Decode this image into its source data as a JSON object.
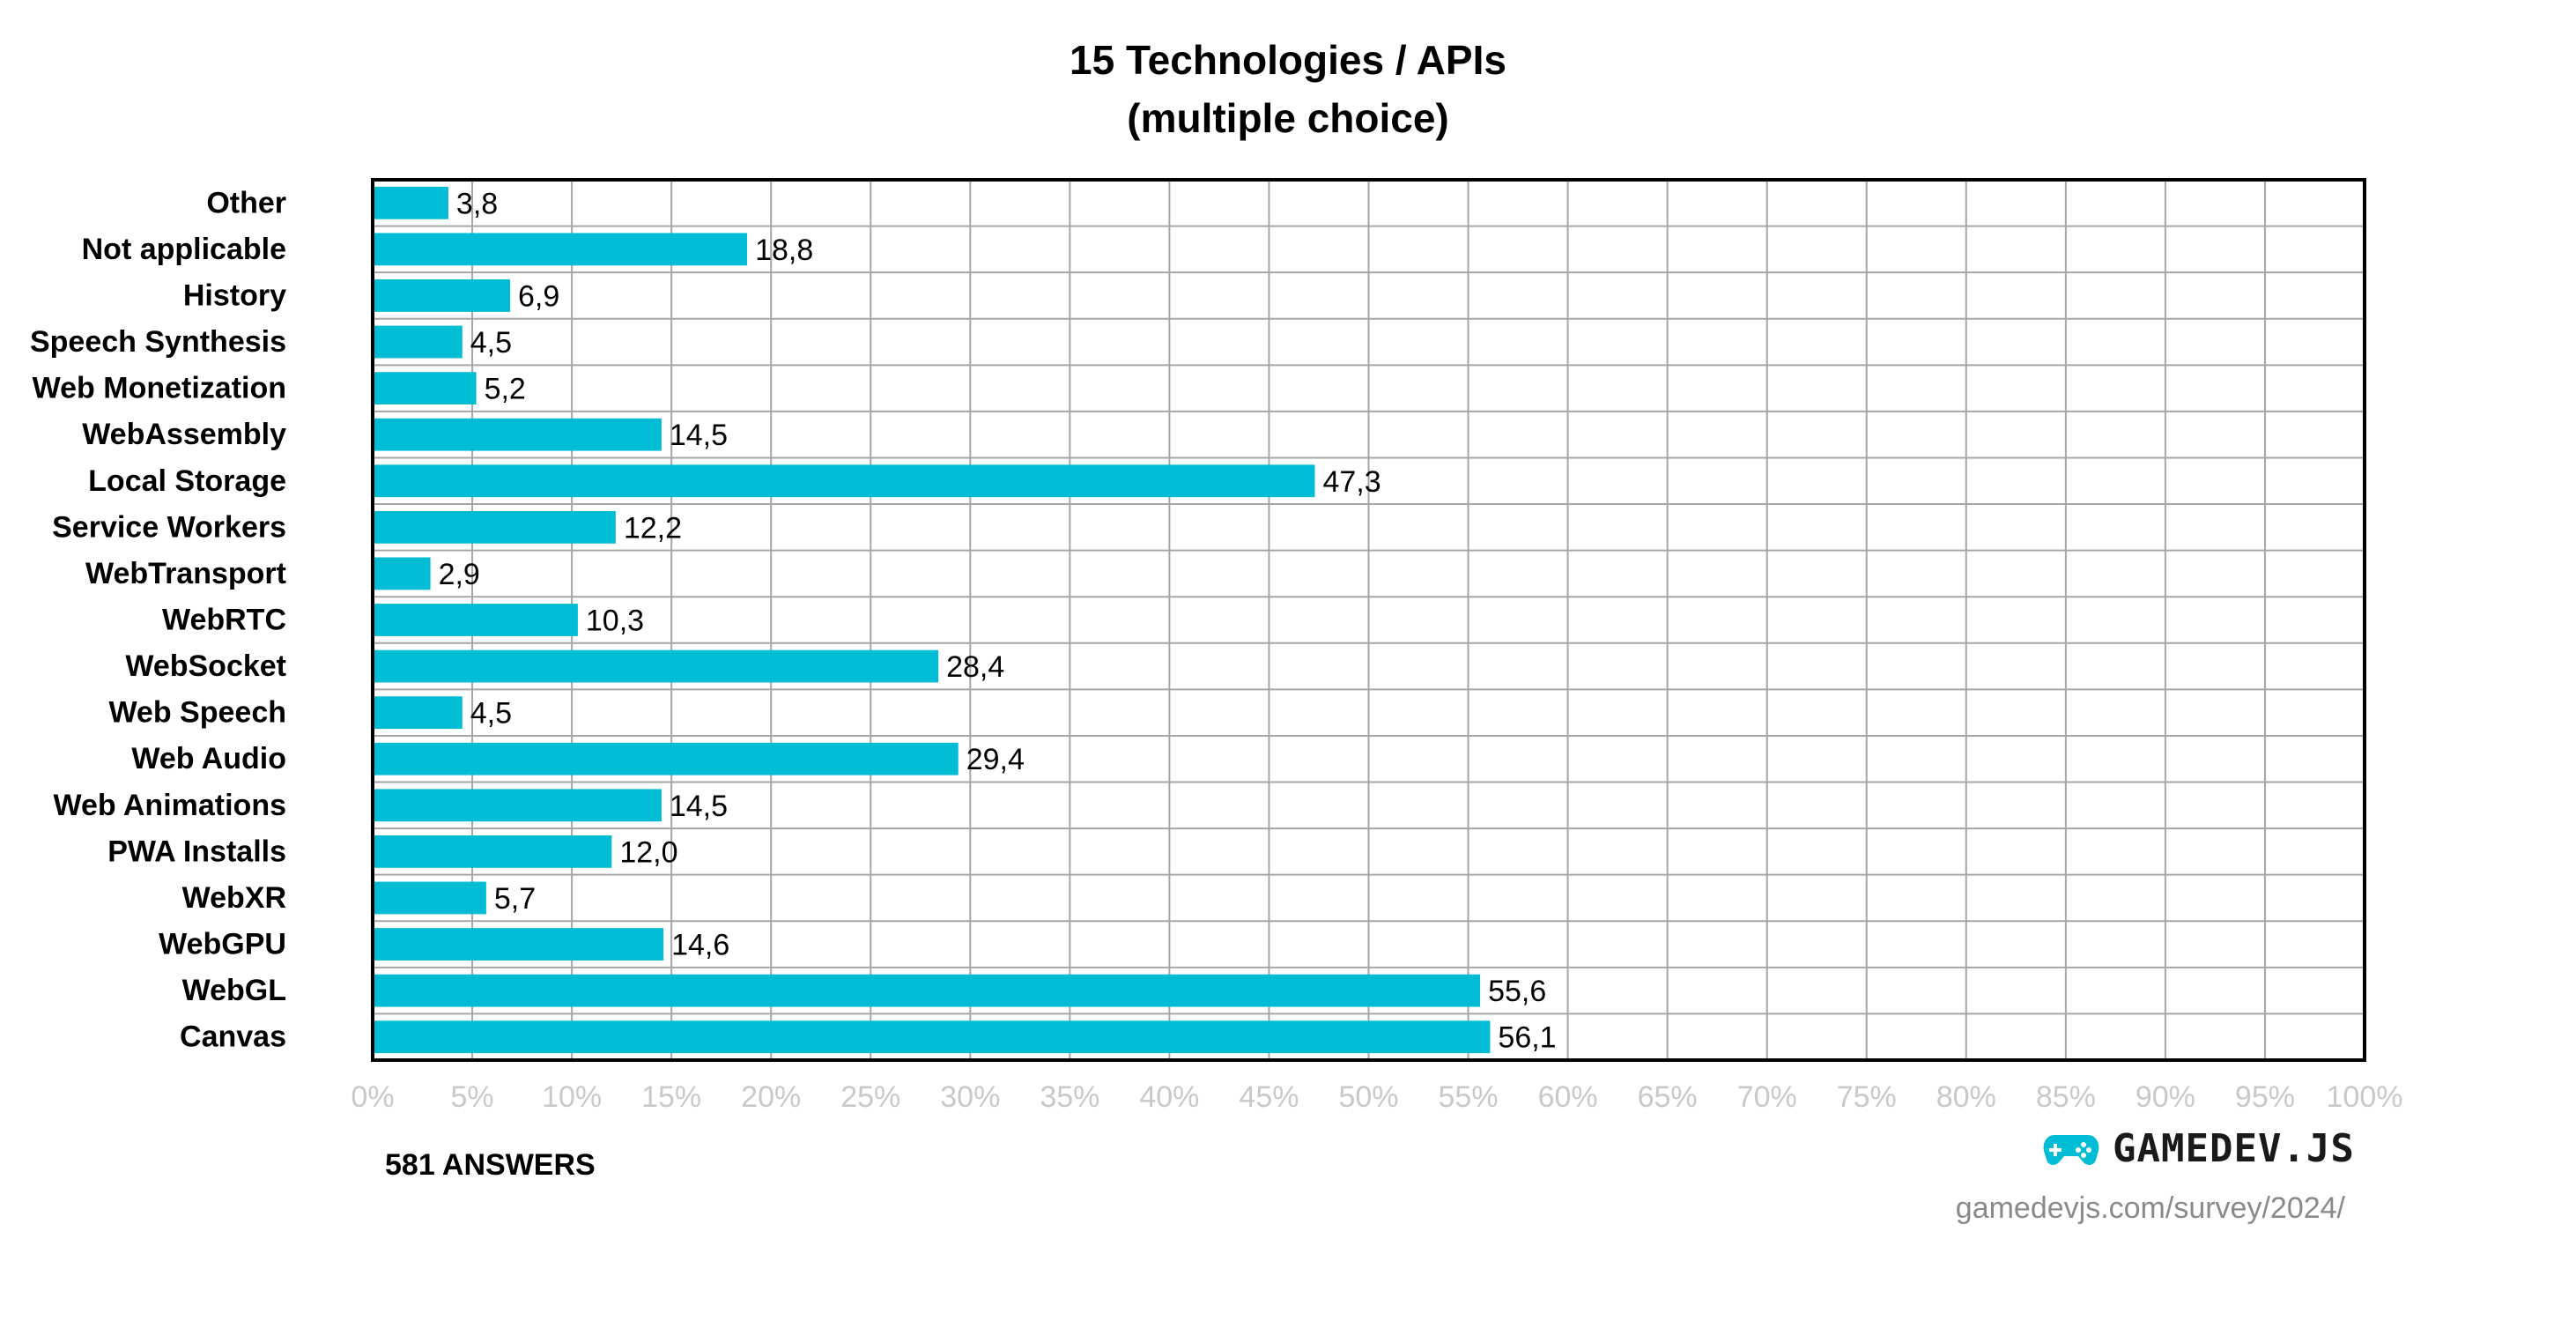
{
  "title": "15 Technologies / APIs",
  "subtitle": "(multiple choice)",
  "answers_label": "581 ANSWERS",
  "brand": {
    "name": "GAMEDEV.JS",
    "url": "gamedevjs.com/survey/2024/",
    "icon": "gamepad-icon"
  },
  "colors": {
    "bar": "#00bcd4",
    "grid": "#a6a6a6",
    "frame": "#000000",
    "tick": "#c9c9c9"
  },
  "chart_data": {
    "type": "bar",
    "orientation": "horizontal",
    "categories": [
      "Other",
      "Not applicable",
      "History",
      "Speech Synthesis",
      "Web Monetization",
      "WebAssembly",
      "Local Storage",
      "Service Workers",
      "WebTransport",
      "WebRTC",
      "WebSocket",
      "Web Speech",
      "Web Audio",
      "Web Animations",
      "PWA Installs",
      "WebXR",
      "WebGPU",
      "WebGL",
      "Canvas"
    ],
    "values": [
      3.8,
      18.8,
      6.9,
      4.5,
      5.2,
      14.5,
      47.3,
      12.2,
      2.9,
      10.3,
      28.4,
      4.5,
      29.4,
      14.5,
      12.0,
      5.7,
      14.6,
      55.6,
      56.1
    ],
    "value_labels": [
      "3,8",
      "18,8",
      "6,9",
      "4,5",
      "5,2",
      "14,5",
      "47,3",
      "12,2",
      "2,9",
      "10,3",
      "28,4",
      "4,5",
      "29,4",
      "14,5",
      "12,0",
      "5,7",
      "14,6",
      "55,6",
      "56,1"
    ],
    "x_ticks": [
      "0%",
      "5%",
      "10%",
      "15%",
      "20%",
      "25%",
      "30%",
      "35%",
      "40%",
      "45%",
      "50%",
      "55%",
      "60%",
      "65%",
      "70%",
      "75%",
      "80%",
      "85%",
      "90%",
      "95%",
      "100%"
    ],
    "xlim": [
      0,
      100
    ],
    "grid": true
  }
}
